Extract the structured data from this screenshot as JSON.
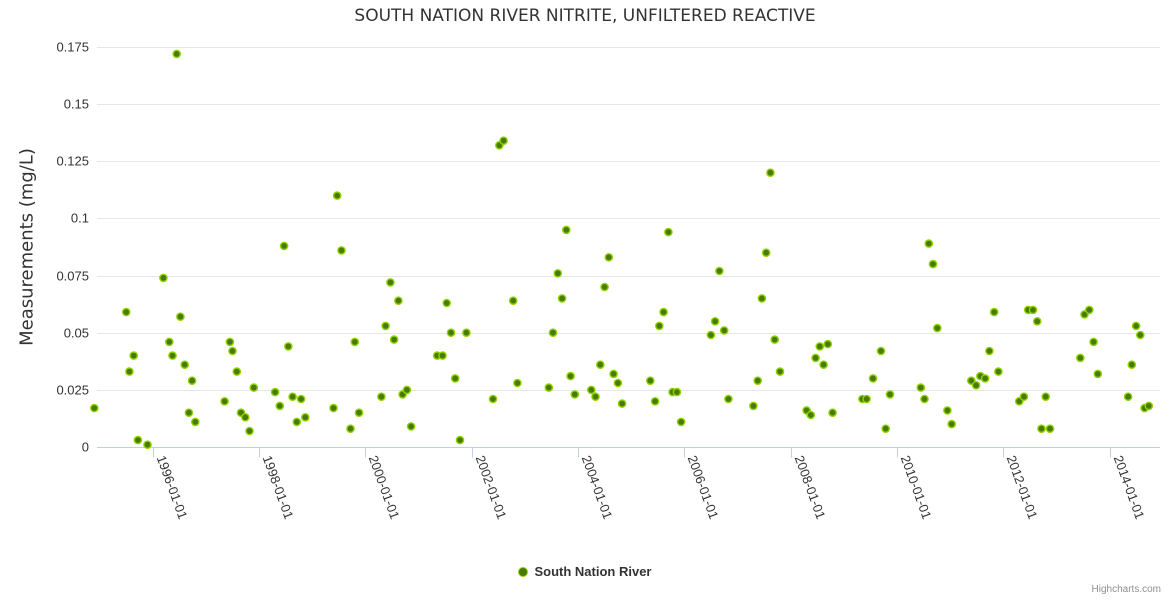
{
  "chart_data": {
    "type": "scatter",
    "title": "SOUTH NATION RIVER NITRITE, UNFILTERED REACTIVE",
    "ylabel": "Measurements (mg/L)",
    "xlabel": "",
    "ylim": [
      0,
      0.175
    ],
    "xlim": [
      1994.95,
      2014.95
    ],
    "grid": true,
    "legend": "bottom-center",
    "yticks": [
      {
        "v": 0,
        "label": "0"
      },
      {
        "v": 0.025,
        "label": "0.025"
      },
      {
        "v": 0.05,
        "label": "0.05"
      },
      {
        "v": 0.075,
        "label": "0.075"
      },
      {
        "v": 0.1,
        "label": "0.1"
      },
      {
        "v": 0.125,
        "label": "0.125"
      },
      {
        "v": 0.15,
        "label": "0.15"
      },
      {
        "v": 0.175,
        "label": "0.175"
      }
    ],
    "xticks": [
      {
        "v": 1996.0,
        "label": "1996-01-01"
      },
      {
        "v": 1998.0,
        "label": "1998-01-01"
      },
      {
        "v": 2000.0,
        "label": "2000-01-01"
      },
      {
        "v": 2002.0,
        "label": "2002-01-01"
      },
      {
        "v": 2004.0,
        "label": "2004-01-01"
      },
      {
        "v": 2006.0,
        "label": "2006-01-01"
      },
      {
        "v": 2008.0,
        "label": "2008-01-01"
      },
      {
        "v": 2010.0,
        "label": "2010-01-01"
      },
      {
        "v": 2012.0,
        "label": "2012-01-01"
      },
      {
        "v": 2014.0,
        "label": "2014-01-01"
      }
    ],
    "series": [
      {
        "name": "South Nation River",
        "color": "#4a7a00",
        "stroke": "#8fd400",
        "points": [
          [
            1994.9,
            0.017
          ],
          [
            1995.5,
            0.059
          ],
          [
            1995.56,
            0.033
          ],
          [
            1995.64,
            0.04
          ],
          [
            1995.72,
            0.003
          ],
          [
            1995.9,
            0.001
          ],
          [
            1996.2,
            0.074
          ],
          [
            1996.31,
            0.046
          ],
          [
            1996.37,
            0.04
          ],
          [
            1996.45,
            0.172
          ],
          [
            1996.52,
            0.057
          ],
          [
            1996.6,
            0.036
          ],
          [
            1996.68,
            0.015
          ],
          [
            1996.74,
            0.029
          ],
          [
            1996.8,
            0.011
          ],
          [
            1997.35,
            0.02
          ],
          [
            1997.45,
            0.046
          ],
          [
            1997.5,
            0.042
          ],
          [
            1997.58,
            0.033
          ],
          [
            1997.66,
            0.015
          ],
          [
            1997.74,
            0.013
          ],
          [
            1997.82,
            0.007
          ],
          [
            1997.9,
            0.026
          ],
          [
            1998.3,
            0.024
          ],
          [
            1998.39,
            0.018
          ],
          [
            1998.47,
            0.088
          ],
          [
            1998.55,
            0.044
          ],
          [
            1998.63,
            0.022
          ],
          [
            1998.71,
            0.011
          ],
          [
            1998.79,
            0.021
          ],
          [
            1998.87,
            0.013
          ],
          [
            1999.4,
            0.017
          ],
          [
            1999.47,
            0.11
          ],
          [
            1999.55,
            0.086
          ],
          [
            1999.72,
            0.008
          ],
          [
            1999.8,
            0.046
          ],
          [
            1999.88,
            0.015
          ],
          [
            2000.3,
            0.022
          ],
          [
            2000.38,
            0.053
          ],
          [
            2000.47,
            0.072
          ],
          [
            2000.54,
            0.047
          ],
          [
            2000.62,
            0.064
          ],
          [
            2000.7,
            0.023
          ],
          [
            2000.78,
            0.025
          ],
          [
            2000.86,
            0.009
          ],
          [
            2001.35,
            0.04
          ],
          [
            2001.45,
            0.04
          ],
          [
            2001.53,
            0.063
          ],
          [
            2001.61,
            0.05
          ],
          [
            2001.69,
            0.03
          ],
          [
            2001.78,
            0.003
          ],
          [
            2001.9,
            0.05
          ],
          [
            2002.4,
            0.021
          ],
          [
            2002.52,
            0.132
          ],
          [
            2002.6,
            0.134
          ],
          [
            2002.78,
            0.064
          ],
          [
            2002.86,
            0.028
          ],
          [
            2003.45,
            0.026
          ],
          [
            2003.53,
            0.05
          ],
          [
            2003.62,
            0.076
          ],
          [
            2003.7,
            0.065
          ],
          [
            2003.78,
            0.095
          ],
          [
            2003.86,
            0.031
          ],
          [
            2003.94,
            0.023
          ],
          [
            2004.25,
            0.025
          ],
          [
            2004.33,
            0.022
          ],
          [
            2004.42,
            0.036
          ],
          [
            2004.5,
            0.07
          ],
          [
            2004.58,
            0.083
          ],
          [
            2004.67,
            0.032
          ],
          [
            2004.75,
            0.028
          ],
          [
            2004.83,
            0.019
          ],
          [
            2005.36,
            0.029
          ],
          [
            2005.45,
            0.02
          ],
          [
            2005.53,
            0.053
          ],
          [
            2005.61,
            0.059
          ],
          [
            2005.7,
            0.094
          ],
          [
            2005.78,
            0.024
          ],
          [
            2005.86,
            0.024
          ],
          [
            2005.94,
            0.011
          ],
          [
            2006.5,
            0.049
          ],
          [
            2006.58,
            0.055
          ],
          [
            2006.66,
            0.077
          ],
          [
            2006.75,
            0.051
          ],
          [
            2006.83,
            0.021
          ],
          [
            2007.3,
            0.018
          ],
          [
            2007.38,
            0.029
          ],
          [
            2007.46,
            0.065
          ],
          [
            2007.54,
            0.085
          ],
          [
            2007.62,
            0.12
          ],
          [
            2007.7,
            0.047
          ],
          [
            2007.8,
            0.033
          ],
          [
            2008.3,
            0.016
          ],
          [
            2008.38,
            0.014
          ],
          [
            2008.47,
            0.039
          ],
          [
            2008.55,
            0.044
          ],
          [
            2008.62,
            0.036
          ],
          [
            2008.7,
            0.045
          ],
          [
            2008.79,
            0.015
          ],
          [
            2009.35,
            0.021
          ],
          [
            2009.43,
            0.021
          ],
          [
            2009.55,
            0.03
          ],
          [
            2009.7,
            0.042
          ],
          [
            2009.79,
            0.008
          ],
          [
            2009.87,
            0.023
          ],
          [
            2010.45,
            0.026
          ],
          [
            2010.52,
            0.021
          ],
          [
            2010.6,
            0.089
          ],
          [
            2010.68,
            0.08
          ],
          [
            2010.76,
            0.052
          ],
          [
            2010.95,
            0.016
          ],
          [
            2011.03,
            0.01
          ],
          [
            2011.4,
            0.029
          ],
          [
            2011.49,
            0.027
          ],
          [
            2011.57,
            0.031
          ],
          [
            2011.66,
            0.03
          ],
          [
            2011.74,
            0.042
          ],
          [
            2011.83,
            0.059
          ],
          [
            2011.91,
            0.033
          ],
          [
            2012.3,
            0.02
          ],
          [
            2012.39,
            0.022
          ],
          [
            2012.47,
            0.06
          ],
          [
            2012.56,
            0.06
          ],
          [
            2012.64,
            0.055
          ],
          [
            2012.72,
            0.008
          ],
          [
            2012.8,
            0.022
          ],
          [
            2012.88,
            0.008
          ],
          [
            2013.45,
            0.039
          ],
          [
            2013.53,
            0.058
          ],
          [
            2013.62,
            0.06
          ],
          [
            2013.7,
            0.046
          ],
          [
            2013.78,
            0.032
          ],
          [
            2014.35,
            0.022
          ],
          [
            2014.42,
            0.036
          ],
          [
            2014.5,
            0.053
          ],
          [
            2014.58,
            0.049
          ],
          [
            2014.66,
            0.017
          ],
          [
            2014.74,
            0.018
          ]
        ]
      }
    ]
  },
  "credit": "Highcharts.com"
}
